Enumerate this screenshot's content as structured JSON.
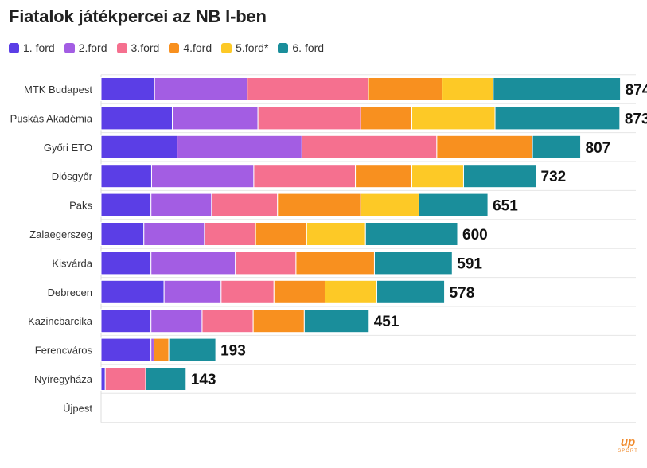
{
  "title": "Fiatalok játékpercei az NB I-ben",
  "legend": [
    {
      "label": "1. ford",
      "color": "#5b3ee6"
    },
    {
      "label": "2.ford",
      "color": "#a35de3"
    },
    {
      "label": "3.ford",
      "color": "#f5708f"
    },
    {
      "label": "4.ford",
      "color": "#f8901f"
    },
    {
      "label": "5.ford*",
      "color": "#fdc926"
    },
    {
      "label": "6. ford",
      "color": "#1a8e9b"
    }
  ],
  "logo": {
    "main": "up",
    "sub": "SPORT"
  },
  "chart_data": {
    "type": "bar",
    "orientation": "horizontal",
    "stacked": true,
    "title": "Fiatalok játékpercei az NB I-ben",
    "categories": [
      "MTK Budapest",
      "Puskás Akadémia",
      "Győri ETO",
      "Diósgyőr",
      "Paks",
      "Zalaegerszeg",
      "Kisvárda",
      "Debrecen",
      "Kazincbarcika",
      "Ferencváros",
      "Nyíregyháza",
      "Újpest"
    ],
    "totals": [
      874,
      873,
      807,
      732,
      651,
      600,
      591,
      578,
      451,
      193,
      143,
      0
    ],
    "series": [
      {
        "name": "1. ford",
        "color": "#5b3ee6",
        "values": [
          90,
          120,
          128,
          85,
          84,
          72,
          84,
          106,
          84,
          84,
          7,
          0
        ]
      },
      {
        "name": "2.ford",
        "color": "#a35de3",
        "values": [
          156,
          144,
          210,
          172,
          102,
          102,
          142,
          96,
          86,
          5,
          0,
          0
        ]
      },
      {
        "name": "3.ford",
        "color": "#f5708f",
        "values": [
          204,
          173,
          227,
          171,
          111,
          86,
          102,
          89,
          86,
          0,
          68,
          0
        ]
      },
      {
        "name": "4.ford",
        "color": "#f8901f",
        "values": [
          124,
          86,
          161,
          95,
          140,
          86,
          132,
          86,
          86,
          25,
          0,
          0
        ]
      },
      {
        "name": "5.ford*",
        "color": "#fdc926",
        "values": [
          86,
          140,
          0,
          87,
          98,
          99,
          0,
          87,
          0,
          0,
          0,
          0
        ]
      },
      {
        "name": "6. ford",
        "color": "#1a8e9b",
        "values": [
          214,
          210,
          81,
          122,
          116,
          155,
          131,
          114,
          109,
          79,
          68,
          0
        ]
      }
    ],
    "xlim": [
      0,
      900
    ],
    "grid": true,
    "legend_position": "top-left"
  }
}
